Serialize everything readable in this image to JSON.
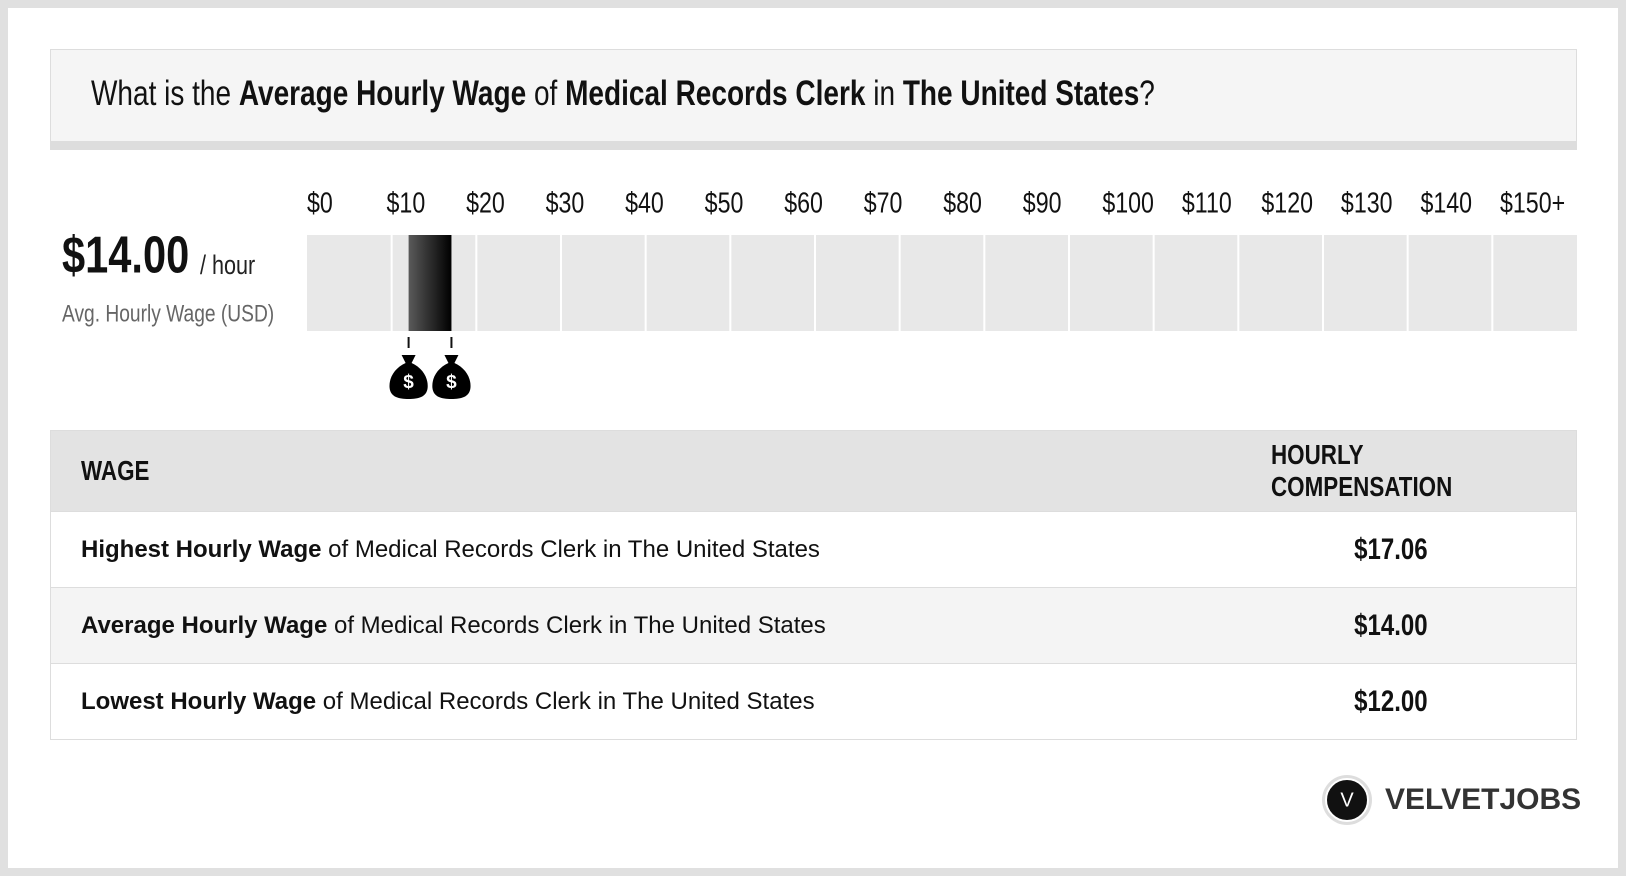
{
  "title": [
    {
      "text": "What is the ",
      "bold": false
    },
    {
      "text": "Average Hourly Wage",
      "bold": true
    },
    {
      "text": " of ",
      "bold": false
    },
    {
      "text": "Medical Records Clerk",
      "bold": true
    },
    {
      "text": " in ",
      "bold": false
    },
    {
      "text": "The United States",
      "bold": true
    },
    {
      "text": "?",
      "bold": false
    }
  ],
  "summary": {
    "value": "$14.00",
    "unit": "/ hour",
    "label": "Avg. Hourly Wage (USD)"
  },
  "chart_data": {
    "type": "range",
    "low": 12,
    "high": 17.06,
    "marker_label": "$",
    "xlim": [
      0,
      150
    ],
    "xticks": [
      {
        "value": 0,
        "label": "$0"
      },
      {
        "value": 10,
        "label": "$10"
      },
      {
        "value": 20,
        "label": "$20"
      },
      {
        "value": 30,
        "label": "$30"
      },
      {
        "value": 40,
        "label": "$40"
      },
      {
        "value": 50,
        "label": "$50"
      },
      {
        "value": 60,
        "label": "$60"
      },
      {
        "value": 70,
        "label": "$70"
      },
      {
        "value": 80,
        "label": "$80"
      },
      {
        "value": 90,
        "label": "$90"
      },
      {
        "value": 100,
        "label": "$100"
      },
      {
        "value": 110,
        "label": "$110"
      },
      {
        "value": 120,
        "label": "$120"
      },
      {
        "value": 130,
        "label": "$130"
      },
      {
        "value": 140,
        "label": "$140"
      },
      {
        "value": 150,
        "label": "$150+"
      }
    ]
  },
  "table": {
    "header": [
      "WAGE",
      "HOURLY COMPENSATION"
    ],
    "rows": [
      {
        "lead": "Highest Hourly Wage",
        "text": " of Medical Records Clerk in The United States",
        "value": "$17.06"
      },
      {
        "lead": "Average Hourly Wage",
        "text": " of Medical Records Clerk in The United States",
        "value": "$14.00"
      },
      {
        "lead": "Lowest Hourly Wage",
        "text": " of Medical Records Clerk in The United States",
        "value": "$12.00"
      }
    ]
  },
  "logo": {
    "icon": "V",
    "text": "VELVETJOBS"
  }
}
